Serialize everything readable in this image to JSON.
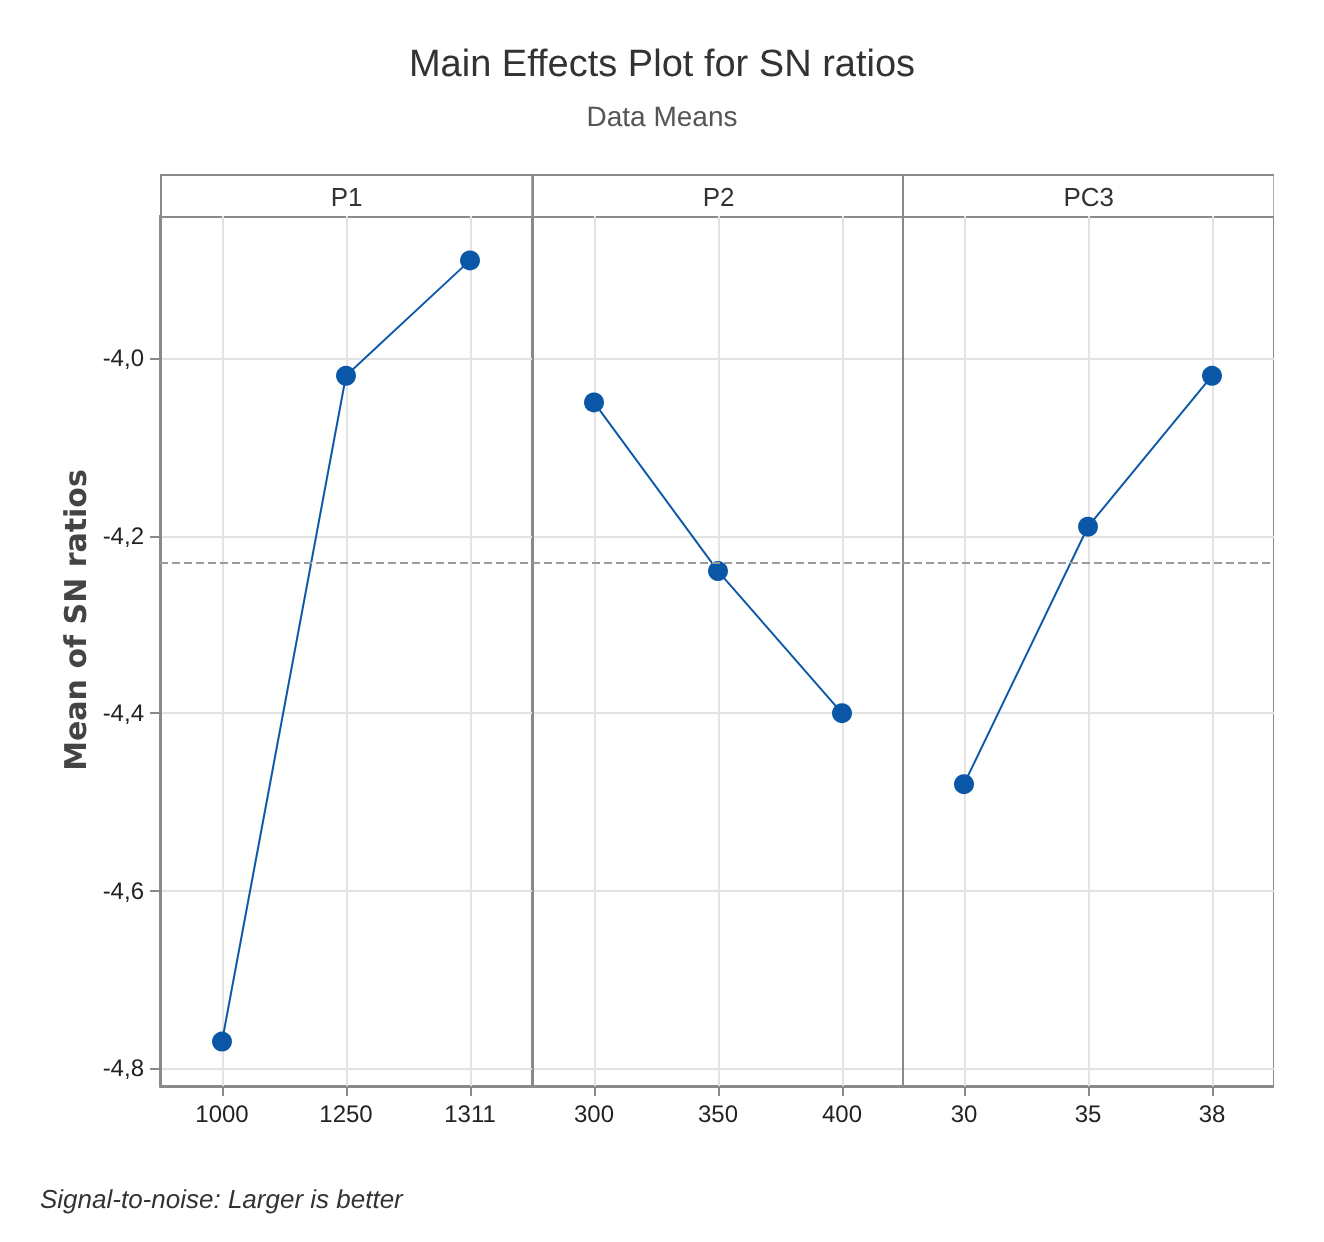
{
  "chart_data": [
    {
      "type": "line",
      "ylabel": "Mean of SN ratios",
      "xlabel": "P1",
      "annotations": [
        "Signal-to-noise: Larger is better"
      ],
      "categories": [
        "1000",
        "1250",
        "1311"
      ],
      "series": [
        {
          "color": "#0a57a8",
          "values": [
            -4.77,
            -4.02,
            -3.89
          ]
        }
      ],
      "ylim": [
        -4.82,
        -3.84
      ],
      "yticks": [
        {
          "value": -4.8,
          "label": "-4,8"
        },
        {
          "value": -4.6,
          "label": "-4,6"
        },
        {
          "value": -4.4,
          "label": "-4,4"
        },
        {
          "value": -4.2,
          "label": "-4,2"
        },
        {
          "value": -4.0,
          "label": "-4,0"
        }
      ],
      "ref_lines": [
        {
          "axis": "y",
          "value": -4.23,
          "color": "#9a9a9a",
          "line_style": "dashed"
        }
      ],
      "grid": true,
      "marker": "circle",
      "line_style": "solid"
    },
    {
      "type": "line",
      "title": "Main Effects Plot for SN ratios",
      "subtitle": "Data Means",
      "xlabel": "P2",
      "categories": [
        "300",
        "350",
        "400"
      ],
      "series": [
        {
          "color": "#0a57a8",
          "values": [
            -4.05,
            -4.24,
            -4.4
          ]
        }
      ],
      "ylim": [
        -4.82,
        -3.84
      ],
      "yticks": [
        {
          "value": -4.8,
          "label": null
        },
        {
          "value": -4.6,
          "label": null
        },
        {
          "value": -4.4,
          "label": null
        },
        {
          "value": -4.2,
          "label": null
        },
        {
          "value": -4.0,
          "label": null
        }
      ],
      "ref_lines": [
        {
          "axis": "y",
          "value": -4.23,
          "color": "#9a9a9a",
          "line_style": "dashed"
        }
      ],
      "grid": true,
      "marker": "circle",
      "line_style": "solid",
      "tick_labels": "x"
    },
    {
      "type": "line",
      "xlabel": "PC3",
      "categories": [
        "30",
        "35",
        "38"
      ],
      "series": [
        {
          "color": "#0a57a8",
          "values": [
            -4.48,
            -4.19,
            -4.02
          ]
        }
      ],
      "ylim": [
        -4.82,
        -3.84
      ],
      "yticks": [
        {
          "value": -4.8,
          "label": null
        },
        {
          "value": -4.6,
          "label": null
        },
        {
          "value": -4.4,
          "label": null
        },
        {
          "value": -4.2,
          "label": null
        },
        {
          "value": -4.0,
          "label": null
        }
      ],
      "ref_lines": [
        {
          "axis": "y",
          "value": -4.23,
          "color": "#9a9a9a",
          "line_style": "dashed"
        }
      ],
      "grid": true,
      "marker": "circle",
      "line_style": "solid",
      "tick_labels": "x"
    }
  ]
}
